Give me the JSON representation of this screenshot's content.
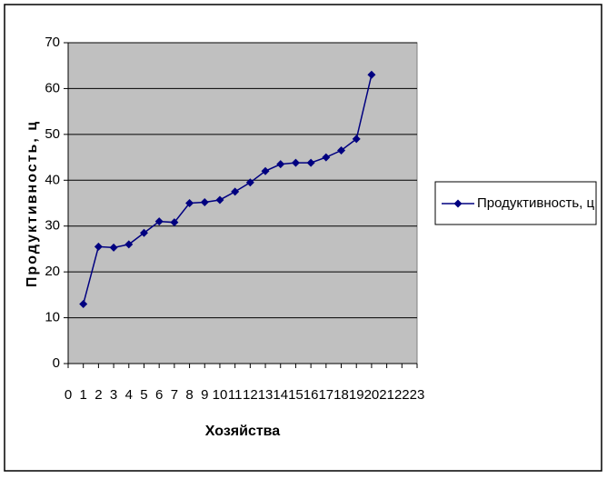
{
  "chart_data": {
    "type": "line",
    "x_label": "Хозяйства",
    "y_label": "Продуктивность, ц",
    "x": [
      1,
      2,
      3,
      4,
      5,
      6,
      7,
      8,
      9,
      10,
      11,
      12,
      13,
      14,
      15,
      16,
      17,
      18,
      19,
      20
    ],
    "series": [
      {
        "name": "Продуктивность, ц",
        "color": "#000080",
        "values": [
          13,
          25.5,
          25.3,
          26,
          28.5,
          31,
          30.8,
          35,
          35.2,
          35.7,
          37.5,
          39.5,
          42,
          43.5,
          43.8,
          43.8,
          45,
          46.5,
          49,
          63
        ]
      }
    ],
    "xlim": [
      0,
      23
    ],
    "xticks": [
      0,
      1,
      2,
      3,
      4,
      5,
      6,
      7,
      8,
      9,
      10,
      11,
      12,
      13,
      14,
      15,
      16,
      17,
      18,
      19,
      20,
      21,
      22,
      23
    ],
    "ylim": [
      0,
      70
    ],
    "yticks": [
      0,
      10,
      20,
      30,
      40,
      50,
      60,
      70
    ],
    "grid": true,
    "legend": "right",
    "plot_background": "#c0c0c0"
  }
}
